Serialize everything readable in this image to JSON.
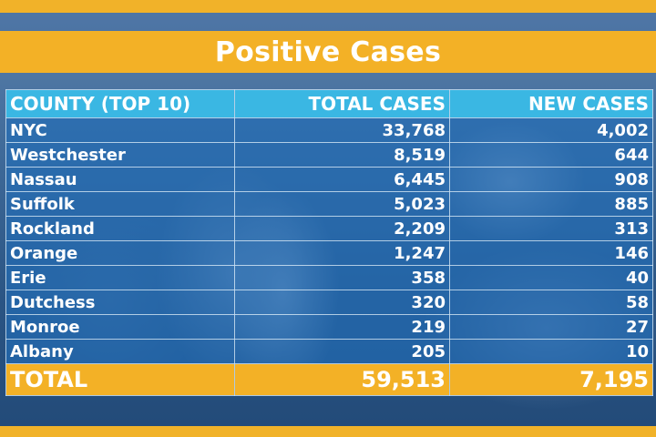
{
  "title": "Positive Cases",
  "colors": {
    "accent_gold": "#f3b126",
    "header_cyan": "#3ab7e3",
    "row_blue": "#206eb9",
    "text": "#ffffff"
  },
  "chart_data": {
    "type": "table",
    "title": "Positive Cases",
    "columns": [
      "COUNTY (TOP 10)",
      "TOTAL CASES",
      "NEW CASES"
    ],
    "rows": [
      {
        "county": "NYC",
        "total": "33,768",
        "new": "4,002"
      },
      {
        "county": "Westchester",
        "total": "8,519",
        "new": "644"
      },
      {
        "county": "Nassau",
        "total": "6,445",
        "new": "908"
      },
      {
        "county": "Suffolk",
        "total": "5,023",
        "new": "885"
      },
      {
        "county": "Rockland",
        "total": "2,209",
        "new": "313"
      },
      {
        "county": "Orange",
        "total": "1,247",
        "new": "146"
      },
      {
        "county": "Erie",
        "total": "358",
        "new": "40"
      },
      {
        "county": "Dutchess",
        "total": "320",
        "new": "58"
      },
      {
        "county": "Monroe",
        "total": "219",
        "new": "27"
      },
      {
        "county": "Albany",
        "total": "205",
        "new": "10"
      }
    ],
    "total_row": {
      "label": "TOTAL",
      "total": "59,513",
      "new": "7,195"
    }
  }
}
